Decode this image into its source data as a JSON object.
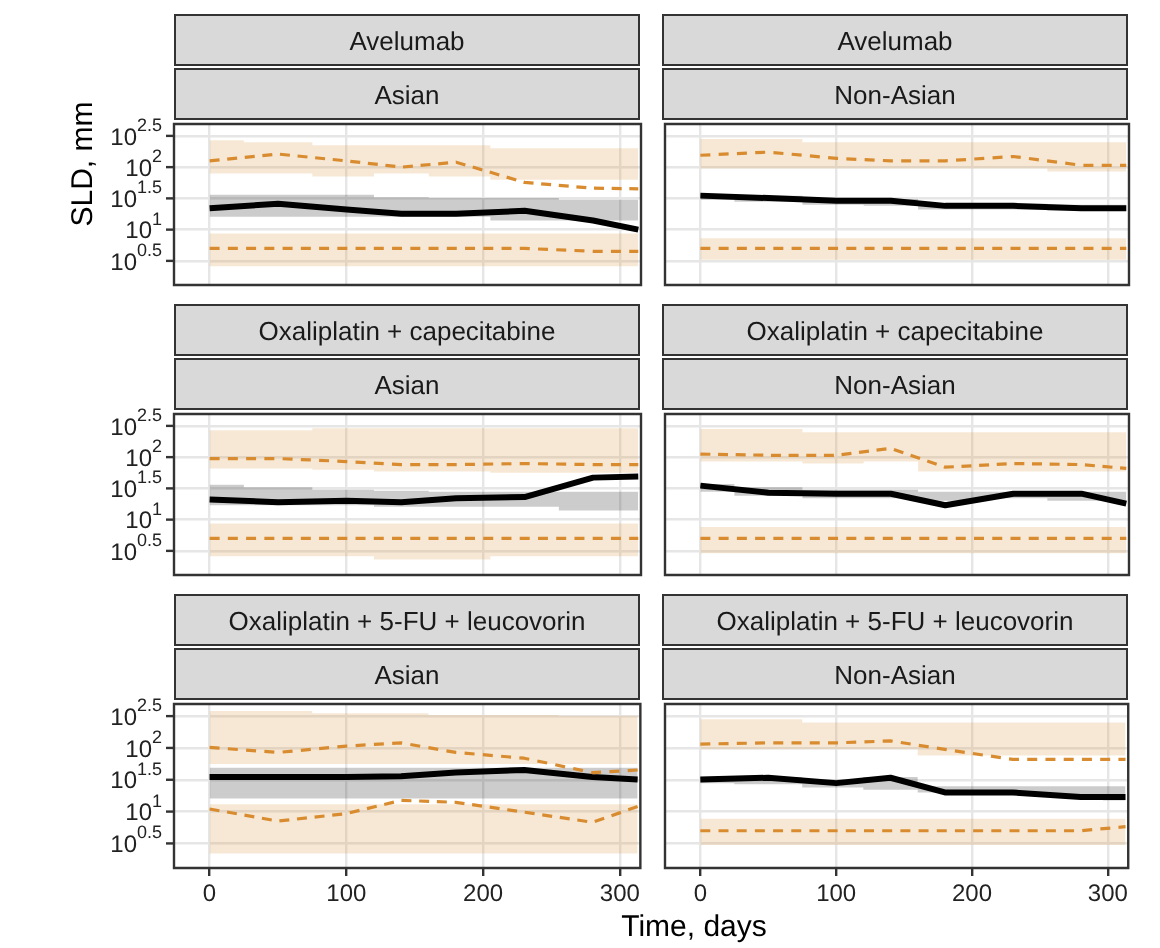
{
  "chart_data": [
    {
      "type": "line",
      "title": "Avelumab",
      "subtitle": "Asian",
      "ylabel": "SLD, mm",
      "x": [
        0,
        50,
        100,
        140,
        180,
        230,
        280,
        313
      ],
      "xlim": [
        -26,
        315
      ],
      "xticks": [
        0,
        100,
        200,
        300
      ],
      "ylim": [
        1.3,
        490
      ],
      "log": true,
      "grid": true,
      "tick_labels": "y",
      "marker": "none",
      "yticks": [
        {
          "value": 3.162,
          "label": "10$^{0.5}$"
        },
        {
          "value": 10,
          "label": "10$^{1}$"
        },
        {
          "value": 31.62,
          "label": "10$^{1.5}$"
        },
        {
          "value": 100,
          "label": "10$^{2}$"
        },
        {
          "value": 316.2,
          "label": "10$^{2.5}$"
        }
      ],
      "series": [
        {
          "color": "#d98c2f",
          "line_style": "dashed",
          "values": [
            126,
            162,
            126,
            100,
            120,
            57,
            46,
            45
          ],
          "lower": [
            79,
            79,
            71,
            79,
            71,
            63,
            63,
            63
          ],
          "upper": [
            269,
            251,
            224,
            224,
            224,
            200,
            200,
            200
          ]
        },
        {
          "color": "#000000",
          "line_style": "solid",
          "values": [
            22,
            26,
            21,
            18,
            18,
            20,
            14,
            10
          ],
          "lower": [
            16,
            16,
            16,
            16,
            16,
            14,
            14,
            14
          ],
          "upper": [
            36,
            36,
            36,
            33,
            32,
            32,
            30,
            30
          ]
        },
        {
          "color": "#d98c2f",
          "line_style": "dashed",
          "values": [
            5,
            5,
            5,
            5,
            5,
            5,
            4.5,
            4.5
          ],
          "lower": [
            2.6,
            2.6,
            2.6,
            2.6,
            2.6,
            2.6,
            2.6,
            2.6
          ],
          "upper": [
            8.7,
            8.7,
            8.7,
            8.7,
            8.7,
            8.7,
            8.7,
            8.7
          ]
        }
      ]
    },
    {
      "type": "line",
      "title": "Avelumab",
      "subtitle": "Non-Asian",
      "x": [
        0,
        50,
        100,
        140,
        180,
        230,
        280,
        313
      ],
      "xlim": [
        -26,
        315
      ],
      "xticks": [
        0,
        100,
        200,
        300
      ],
      "ylim": [
        1.3,
        490
      ],
      "log": true,
      "grid": true,
      "tick_labels": false,
      "marker": "none",
      "yticks": [
        {
          "value": 3.162,
          "label": null
        },
        {
          "value": 10,
          "label": null
        },
        {
          "value": 31.62,
          "label": null
        },
        {
          "value": 100,
          "label": null
        },
        {
          "value": 316.2,
          "label": null
        }
      ],
      "series": [
        {
          "color": "#d98c2f",
          "line_style": "dashed",
          "values": [
            155,
            174,
            138,
            126,
            126,
            148,
            107,
            107
          ],
          "lower": [
            95,
            95,
            95,
            95,
            95,
            95,
            85,
            85
          ],
          "upper": [
            282,
            282,
            251,
            251,
            251,
            251,
            251,
            251
          ]
        },
        {
          "color": "#000000",
          "line_style": "solid",
          "values": [
            35,
            32,
            29,
            29,
            24,
            24,
            22,
            22
          ],
          "lower": [
            30,
            28,
            25,
            24,
            21,
            21,
            20,
            20
          ],
          "upper": [
            37,
            35,
            32,
            31,
            26,
            26,
            25,
            25
          ]
        },
        {
          "color": "#d98c2f",
          "line_style": "dashed",
          "values": [
            5,
            5,
            5,
            5,
            5,
            5,
            5,
            5
          ],
          "lower": [
            3.3,
            3.3,
            3.3,
            3.3,
            3.3,
            3.3,
            3.3,
            3.3
          ],
          "upper": [
            7.3,
            7.3,
            7.3,
            7.3,
            7.3,
            7.3,
            7.3,
            7.3
          ]
        }
      ]
    },
    {
      "type": "line",
      "title": "Oxaliplatin + capecitabine",
      "subtitle": "Asian",
      "x": [
        0,
        50,
        100,
        140,
        180,
        230,
        280,
        313
      ],
      "xlim": [
        -26,
        315
      ],
      "xticks": [
        0,
        100,
        200,
        300
      ],
      "ylim": [
        1.3,
        490
      ],
      "log": true,
      "grid": true,
      "tick_labels": "y",
      "marker": "none",
      "yticks": [
        {
          "value": 3.162,
          "label": "10$^{0.5}$"
        },
        {
          "value": 10,
          "label": "10$^{1}$"
        },
        {
          "value": 31.62,
          "label": "10$^{1.5}$"
        },
        {
          "value": 100,
          "label": "10$^{2}$"
        },
        {
          "value": 316.2,
          "label": "10$^{2.5}$"
        }
      ],
      "series": [
        {
          "color": "#d98c2f",
          "line_style": "dashed",
          "values": [
            95,
            95,
            85,
            76,
            76,
            79,
            76,
            76
          ],
          "lower": [
            66,
            66,
            63,
            59,
            59,
            56,
            56,
            56
          ],
          "upper": [
            269,
            269,
            290,
            290,
            290,
            290,
            290,
            290
          ]
        },
        {
          "color": "#000000",
          "line_style": "solid",
          "values": [
            21,
            19,
            20,
            19,
            22,
            23,
            47,
            49
          ],
          "lower": [
            17,
            17,
            17,
            16,
            16,
            16,
            14,
            14
          ],
          "upper": [
            36,
            33,
            30,
            29,
            28,
            28,
            28,
            28
          ]
        },
        {
          "color": "#d98c2f",
          "line_style": "dashed",
          "values": [
            5,
            5,
            5,
            5,
            5,
            5,
            5,
            5
          ],
          "lower": [
            2.6,
            2.6,
            2.6,
            2.3,
            2.3,
            2.6,
            2.6,
            2.6
          ],
          "upper": [
            8.7,
            8.7,
            8.7,
            8.7,
            8.7,
            8.7,
            8.7,
            8.7
          ]
        }
      ]
    },
    {
      "type": "line",
      "title": "Oxaliplatin + capecitabine",
      "subtitle": "Non-Asian",
      "x": [
        0,
        50,
        100,
        140,
        180,
        230,
        280,
        313
      ],
      "xlim": [
        -26,
        315
      ],
      "xticks": [
        0,
        100,
        200,
        300
      ],
      "ylim": [
        1.3,
        490
      ],
      "log": true,
      "grid": true,
      "tick_labels": false,
      "marker": "none",
      "yticks": [
        {
          "value": 3.162,
          "label": null
        },
        {
          "value": 10,
          "label": null
        },
        {
          "value": 31.62,
          "label": null
        },
        {
          "value": 100,
          "label": null
        },
        {
          "value": 316.2,
          "label": null
        }
      ],
      "series": [
        {
          "color": "#d98c2f",
          "line_style": "dashed",
          "values": [
            112,
            107,
            107,
            138,
            69,
            79,
            76,
            66
          ],
          "lower": [
            85,
            85,
            79,
            85,
            59,
            59,
            59,
            59
          ],
          "upper": [
            282,
            282,
            251,
            251,
            251,
            251,
            251,
            251
          ]
        },
        {
          "color": "#000000",
          "line_style": "solid",
          "values": [
            35,
            27,
            26,
            26,
            17,
            26,
            26,
            18
          ],
          "lower": [
            28,
            24,
            22,
            22,
            20,
            22,
            20,
            20
          ],
          "upper": [
            37,
            33,
            30,
            30,
            28,
            28,
            28,
            28
          ]
        },
        {
          "color": "#d98c2f",
          "line_style": "dashed",
          "values": [
            5,
            5,
            5,
            5,
            5,
            5,
            5,
            5
          ],
          "lower": [
            2.9,
            2.9,
            2.9,
            2.9,
            2.9,
            2.9,
            2.9,
            2.9
          ],
          "upper": [
            7.6,
            7.6,
            7.6,
            7.6,
            7.6,
            7.6,
            7.6,
            7.6
          ]
        }
      ]
    },
    {
      "type": "line",
      "title": "Oxaliplatin + 5-FU + leucovorin",
      "subtitle": "Asian",
      "xlabel": "Time, days",
      "x": [
        0,
        50,
        100,
        140,
        180,
        230,
        280,
        313
      ],
      "xlim": [
        -26,
        315
      ],
      "xticks": [
        0,
        100,
        200,
        300
      ],
      "ylim": [
        1.3,
        490
      ],
      "log": true,
      "grid": true,
      "marker": "none",
      "yticks": [
        {
          "value": 3.162,
          "label": "10$^{0.5}$"
        },
        {
          "value": 10,
          "label": "10$^{1}$"
        },
        {
          "value": 31.62,
          "label": "10$^{1.5}$"
        },
        {
          "value": 100,
          "label": "10$^{2}$"
        },
        {
          "value": 316.2,
          "label": "10$^{2.5}$"
        }
      ],
      "series": [
        {
          "color": "#d98c2f",
          "line_style": "dashed",
          "values": [
            102,
            85,
            107,
            120,
            85,
            69,
            41,
            45
          ],
          "lower": [
            56,
            56,
            56,
            56,
            56,
            56,
            56,
            56
          ],
          "upper": [
            380,
            380,
            350,
            350,
            330,
            330,
            320,
            320
          ]
        },
        {
          "color": "#000000",
          "line_style": "solid",
          "values": [
            35,
            35,
            35,
            36,
            41,
            45,
            35,
            32
          ],
          "lower": [
            16,
            16,
            16,
            16,
            16,
            16,
            16,
            16
          ],
          "upper": [
            49,
            49,
            49,
            49,
            49,
            49,
            49,
            49
          ]
        },
        {
          "color": "#d98c2f",
          "line_style": "dashed",
          "values": [
            11,
            7.1,
            9.3,
            15,
            14,
            9.8,
            6.8,
            12
          ],
          "lower": [
            2.2,
            2.2,
            2.2,
            2.2,
            2.2,
            2.2,
            2.2,
            2.2
          ],
          "upper": [
            13,
            13,
            13,
            13,
            13,
            13,
            13,
            13
          ]
        }
      ]
    },
    {
      "type": "line",
      "title": "Oxaliplatin + 5-FU + leucovorin",
      "subtitle": "Non-Asian",
      "x": [
        0,
        50,
        100,
        140,
        180,
        230,
        280,
        313
      ],
      "xlim": [
        -26,
        315
      ],
      "xticks": [
        0,
        100,
        200,
        300
      ],
      "ylim": [
        1.3,
        490
      ],
      "log": true,
      "grid": true,
      "tick_labels": "x",
      "marker": "none",
      "yticks": [
        {
          "value": 3.162,
          "label": null
        },
        {
          "value": 10,
          "label": null
        },
        {
          "value": 31.62,
          "label": null
        },
        {
          "value": 100,
          "label": null
        },
        {
          "value": 316.2,
          "label": null
        }
      ],
      "series": [
        {
          "color": "#d98c2f",
          "line_style": "dashed",
          "values": [
            115,
            120,
            120,
            129,
            95,
            66,
            66,
            66
          ],
          "lower": [
            95,
            95,
            95,
            95,
            76,
            76,
            76,
            76
          ],
          "upper": [
            282,
            282,
            251,
            251,
            251,
            251,
            251,
            251
          ]
        },
        {
          "color": "#000000",
          "line_style": "solid",
          "values": [
            32,
            34,
            28,
            34,
            20,
            20,
            17,
            17
          ],
          "lower": [
            28,
            27,
            24,
            22,
            20,
            19,
            17,
            15
          ],
          "upper": [
            35,
            35,
            32,
            35,
            25,
            25,
            25,
            25
          ]
        },
        {
          "color": "#d98c2f",
          "line_style": "dashed",
          "values": [
            5,
            5,
            5,
            5,
            5,
            5,
            5,
            5.8
          ],
          "lower": [
            3,
            3,
            3,
            3,
            3,
            3,
            3,
            3
          ],
          "upper": [
            7.7,
            7.7,
            7.7,
            7.7,
            7.7,
            7.7,
            7.7,
            7.7
          ]
        }
      ]
    }
  ]
}
